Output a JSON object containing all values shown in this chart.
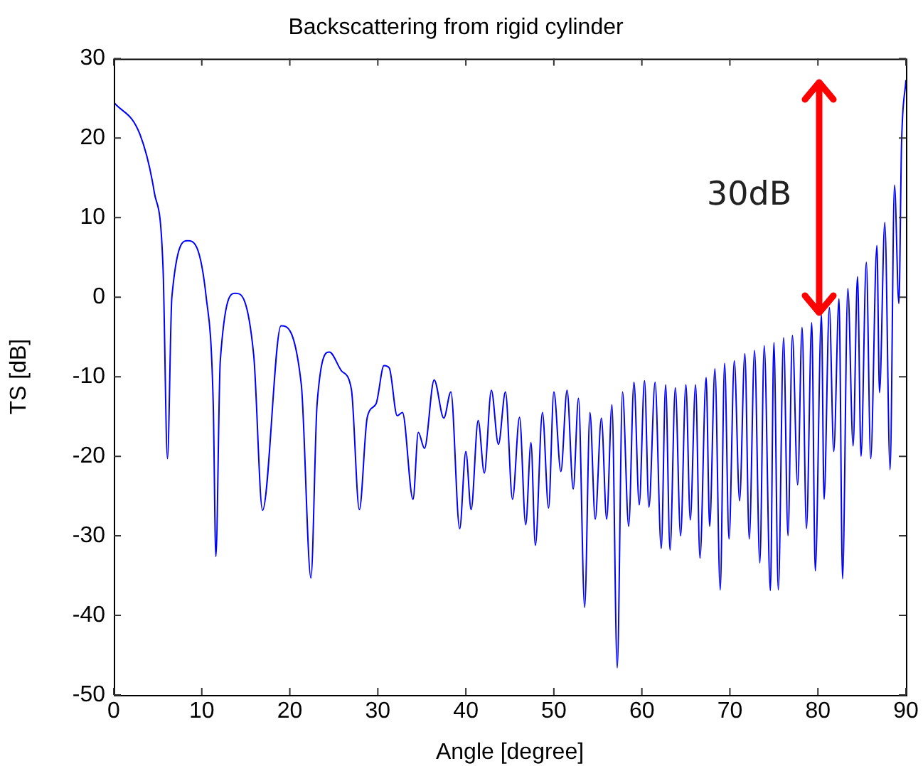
{
  "chart_data": {
    "type": "line",
    "title": "Backscattering from rigid cylinder",
    "xlabel": "Angle [degree]",
    "ylabel": "TS [dB]",
    "xlim": [
      0,
      90
    ],
    "xticks": [
      0,
      10,
      20,
      30,
      40,
      50,
      60,
      70,
      80,
      90
    ],
    "ylim": [
      -50,
      30
    ],
    "yticks": [
      -50,
      -40,
      -30,
      -20,
      -10,
      0,
      10,
      20,
      30
    ],
    "grid": false,
    "legend": false,
    "marker": "none",
    "line_style": "solid",
    "annotations": [
      "30dB"
    ],
    "series": [
      {
        "color": "#0000ff",
        "x": [
          0,
          3.0,
          4.6,
          5.6,
          6.1,
          6.6,
          8.4,
          10.5,
          11.3,
          11.6,
          12.1,
          13.8,
          15.9,
          16.9,
          19.0,
          21.3,
          22.4,
          23.1,
          24.5,
          25.9,
          27.0,
          27.9,
          28.8,
          29.8,
          30.7,
          31.3,
          32.2,
          32.8,
          34.0,
          34.6,
          35.3,
          36.4,
          37.5,
          38.3,
          39.3,
          40.0,
          40.6,
          41.4,
          42.1,
          42.9,
          43.7,
          44.5,
          45.3,
          46.1,
          46.8,
          47.4,
          47.9,
          48.7,
          49.4,
          50.0,
          50.8,
          51.5,
          52.2,
          52.8,
          53.5,
          54.1,
          54.7,
          55.4,
          56.0,
          56.6,
          57.2,
          57.8,
          58.5,
          59.1,
          59.7,
          60.3,
          60.8,
          61.5,
          62.2,
          62.7,
          63.2,
          63.8,
          64.4,
          65.0,
          65.5,
          66.1,
          66.6,
          67.3,
          67.7,
          68.3,
          68.9,
          69.4,
          69.9,
          70.5,
          71.1,
          71.7,
          72.2,
          72.8,
          73.4,
          73.9,
          74.6,
          75.0,
          75.5,
          76.1,
          76.6,
          77.1,
          77.7,
          78.2,
          78.7,
          79.3,
          79.7,
          80.4,
          80.7,
          81.3,
          81.8,
          82.4,
          82.8,
          83.4,
          84.0,
          84.5,
          84.9,
          85.5,
          86.0,
          86.7,
          87.0,
          87.6,
          88.2,
          88.7,
          89.2,
          89.5,
          90
        ],
        "values": [
          24.5,
          20.4,
          13.2,
          3.6,
          -20.3,
          0,
          7.1,
          0,
          -13.4,
          -32.6,
          -8,
          0.5,
          -7.3,
          -26.8,
          -3.6,
          -10.9,
          -35.3,
          -13.4,
          -6.9,
          -9.3,
          -11.6,
          -26.7,
          -15.1,
          -13.4,
          -8.6,
          -8.9,
          -14.9,
          -14.5,
          -25.4,
          -17,
          -19,
          -10.4,
          -15.2,
          -11.9,
          -29.1,
          -19.4,
          -26.7,
          -15.5,
          -22.1,
          -11.7,
          -18.5,
          -11.9,
          -25.4,
          -15.1,
          -28.6,
          -18.3,
          -31.2,
          -14.5,
          -26.5,
          -11.9,
          -21.9,
          -11.7,
          -24.1,
          -12.7,
          -39.0,
          -14.5,
          -27.9,
          -15.2,
          -27.9,
          -13.5,
          -46.6,
          -11.9,
          -28.8,
          -10.7,
          -26.1,
          -10.5,
          -26.4,
          -10.7,
          -31.6,
          -11,
          -31.8,
          -11.4,
          -30,
          -11,
          -28,
          -11,
          -32.8,
          -10.1,
          -28.8,
          -9,
          -36.8,
          -8.3,
          -30.4,
          -8,
          -25.6,
          -7.1,
          -30.4,
          -6.7,
          -33.4,
          -6.1,
          -36.9,
          -5.7,
          -36.8,
          -5.1,
          -30,
          -4.8,
          -23.6,
          -3.8,
          -29.1,
          -3.2,
          -34.4,
          -2.2,
          -25.4,
          -1.3,
          -19.4,
          -0.2,
          -35.4,
          1.1,
          -18.7,
          2.6,
          -20,
          4.4,
          -20.3,
          6.5,
          -12,
          9.4,
          -21.7,
          14.1,
          -0.8,
          19.2,
          27.3
        ]
      }
    ]
  }
}
